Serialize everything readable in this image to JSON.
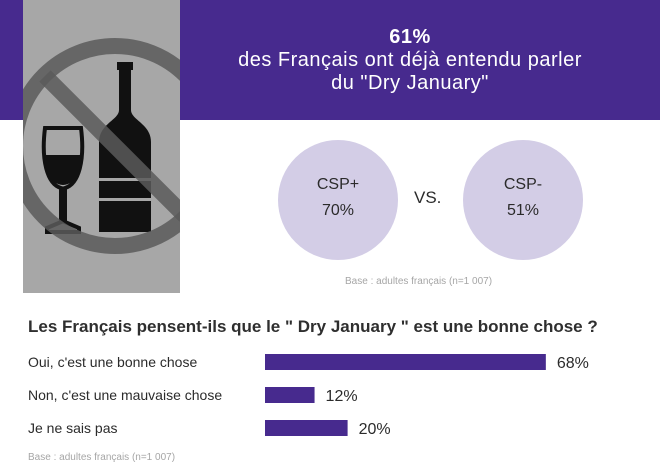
{
  "header": {
    "stat": "61%",
    "line1": "des Français ont déjà entendu parler",
    "line2": "du \"Dry January\""
  },
  "comparison": {
    "left": {
      "label": "CSP+",
      "value": "70%"
    },
    "separator": "VS.",
    "right": {
      "label": "CSP-",
      "value": "51%"
    },
    "base": "Base : adultes français (n=1 007)"
  },
  "colors": {
    "accent": "#472a8e",
    "circle": "#d3cde6",
    "photo_bg": "#a7a7a7"
  },
  "chart_data": {
    "type": "bar",
    "orientation": "horizontal",
    "title": "Les Français pensent-ils que le \" Dry January \" est une bonne chose ?",
    "categories": [
      "Oui, c'est une bonne chose",
      "Non, c'est une mauvaise chose",
      "Je ne sais pas"
    ],
    "values": [
      68,
      12,
      20
    ],
    "labels": [
      "68%",
      "12%",
      "20%"
    ],
    "unit": "%",
    "xlim": [
      0,
      100
    ],
    "grid": false,
    "base": "Base : adultes français (n=1 007)"
  }
}
